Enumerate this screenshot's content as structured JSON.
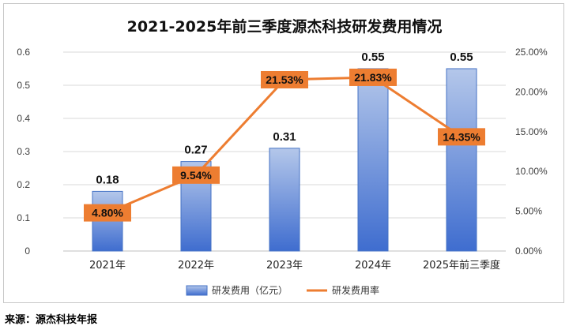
{
  "source_note": "来源：源杰科技年报",
  "colors": {
    "bar_top": "#b4c7ea",
    "bar_bottom": "#3f6dcf",
    "bar_stroke": "#4472c4",
    "line": "#ed7d31",
    "label_box": "#ed7d31",
    "grid": "#d9d9d9",
    "axis_text": "#404040"
  },
  "chart_data": {
    "type": "bar+line",
    "title": "2021-2025年前三季度源杰科技研发费用情况",
    "categories": [
      "2021年",
      "2022年",
      "2023年",
      "2024年",
      "2025年前三季度"
    ],
    "series": [
      {
        "name": "研发费用（亿元）",
        "type": "bar",
        "axis": "left",
        "values": [
          0.18,
          0.27,
          0.31,
          0.55,
          0.55
        ],
        "labels": [
          "0.18",
          "0.27",
          "0.31",
          "0.55",
          "0.55"
        ]
      },
      {
        "name": "研发费用率",
        "type": "line",
        "axis": "right",
        "values": [
          4.8,
          9.54,
          21.53,
          21.83,
          14.35
        ],
        "labels": [
          "4.80%",
          "9.54%",
          "21.53%",
          "21.83%",
          "14.35%"
        ]
      }
    ],
    "y_left": {
      "min": 0,
      "max": 0.6,
      "ticks": [
        "0",
        "0.1",
        "0.2",
        "0.3",
        "0.4",
        "0.5",
        "0.6"
      ]
    },
    "y_right": {
      "min": 0,
      "max": 25,
      "ticks": [
        "0.00%",
        "5.00%",
        "10.00%",
        "15.00%",
        "20.00%",
        "25.00%"
      ]
    },
    "grid": true,
    "legend": "bottom"
  }
}
